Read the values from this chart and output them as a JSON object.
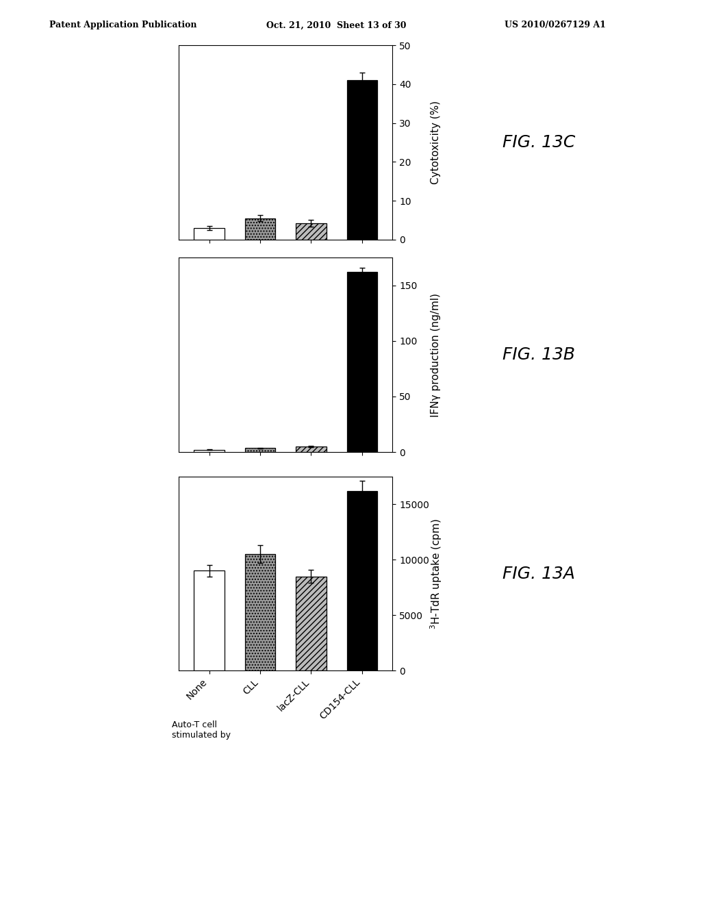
{
  "header_left": "Patent Application Publication",
  "header_mid": "Oct. 21, 2010  Sheet 13 of 30",
  "header_right": "US 2010/0267129 A1",
  "categories": [
    "None",
    "CLL",
    "lacZ-CLL",
    "CD154-CLL"
  ],
  "fig13C": {
    "values": [
      3.0,
      5.5,
      4.2,
      41.0
    ],
    "errors": [
      0.5,
      0.8,
      0.8,
      2.0
    ],
    "ylabel": "Cytotoxicity (%)",
    "fig_label": "FIG. 13C",
    "ylim": [
      0,
      50
    ],
    "yticks": [
      0,
      10,
      20,
      30,
      40,
      50
    ]
  },
  "fig13B": {
    "values": [
      2.0,
      3.5,
      5.0,
      162.0
    ],
    "errors": [
      0.4,
      0.4,
      0.8,
      4.0
    ],
    "ylabel": "IFNγ production (ng/ml)",
    "fig_label": "FIG. 13B",
    "ylim": [
      0,
      175
    ],
    "yticks": [
      0,
      50,
      100,
      150
    ]
  },
  "fig13A": {
    "values": [
      9000,
      10500,
      8500,
      16200
    ],
    "errors": [
      500,
      800,
      600,
      900
    ],
    "ylabel": "3H-TdR uptake (cpm)",
    "fig_label": "FIG. 13A",
    "ylim": [
      0,
      17500
    ],
    "yticks": [
      0,
      5000,
      10000,
      15000
    ]
  },
  "bar_colors": [
    "white",
    "#999999",
    "#bbbbbb",
    "black"
  ],
  "bar_hatches": [
    "",
    "....",
    "////",
    ""
  ],
  "bar_edgecolor": "black",
  "background_color": "white",
  "fig_label_fontsize": 18,
  "ylabel_fontsize": 11,
  "tick_fontsize": 10
}
